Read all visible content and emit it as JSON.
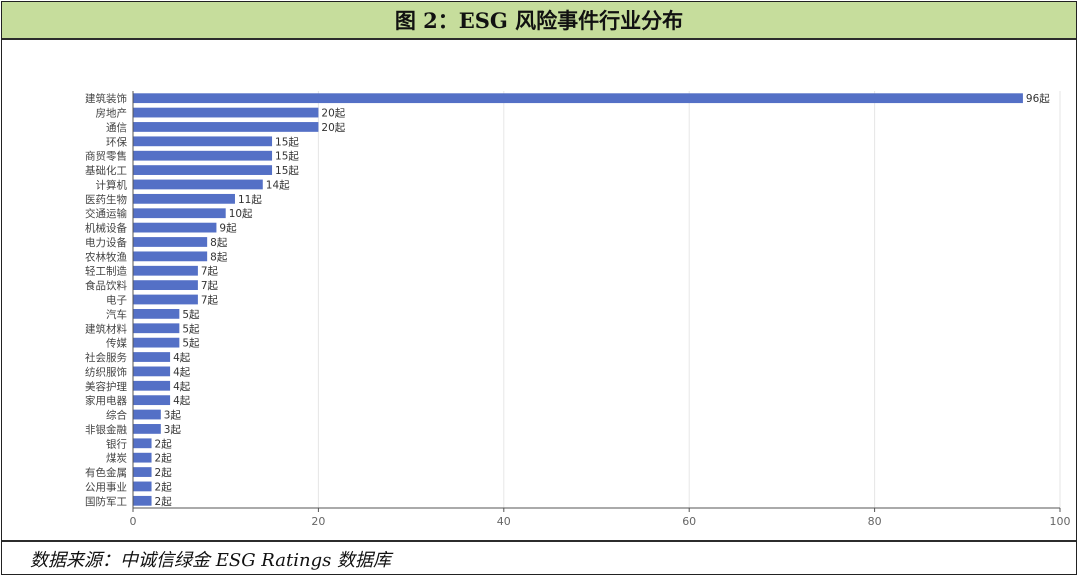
{
  "title": "图 2：ESG 风险事件行业分布",
  "source": "数据来源：中诚信绿金 ESG Ratings 数据库",
  "chart_data": {
    "type": "bar",
    "orientation": "horizontal",
    "categories": [
      "建筑装饰",
      "房地产",
      "通信",
      "环保",
      "商贸零售",
      "基础化工",
      "计算机",
      "医药生物",
      "交通运输",
      "机械设备",
      "电力设备",
      "农林牧渔",
      "轻工制造",
      "食品饮料",
      "电子",
      "汽车",
      "建筑材料",
      "传媒",
      "社会服务",
      "纺织服饰",
      "美容护理",
      "家用电器",
      "综合",
      "非银金融",
      "银行",
      "煤炭",
      "有色金属",
      "公用事业",
      "国防军工"
    ],
    "values": [
      96,
      20,
      20,
      15,
      15,
      15,
      14,
      11,
      10,
      9,
      8,
      8,
      7,
      7,
      7,
      5,
      5,
      5,
      4,
      4,
      4,
      4,
      3,
      3,
      2,
      2,
      2,
      2,
      2
    ],
    "value_suffix": "起",
    "xlim": [
      0,
      100
    ],
    "xticks": [
      0,
      20,
      40,
      60,
      80,
      100
    ],
    "grid": true,
    "bar_color": "#5470c6"
  }
}
